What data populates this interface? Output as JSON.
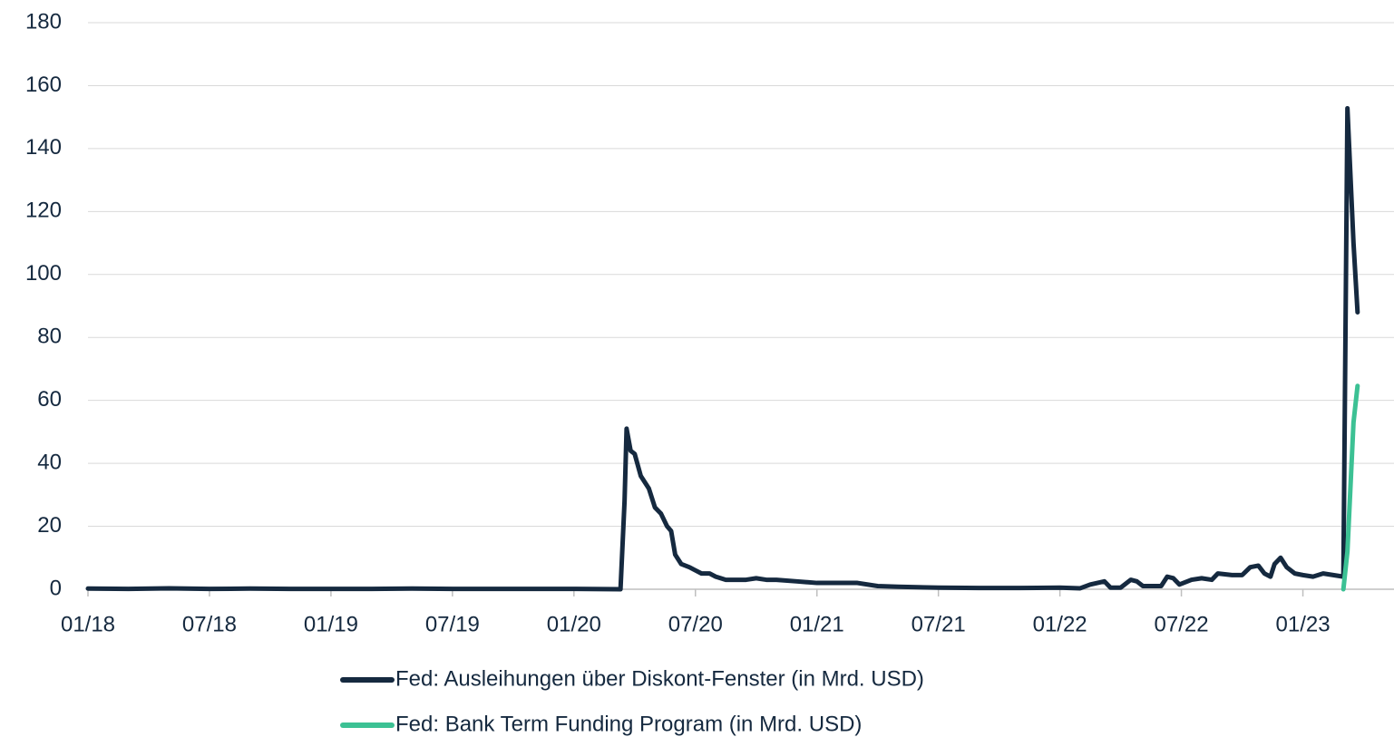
{
  "chart_data": {
    "type": "line",
    "x": [
      0,
      2,
      4,
      6,
      8,
      10,
      12,
      14,
      16,
      18,
      20,
      22,
      24,
      26.3,
      26.5,
      26.6,
      26.8,
      27.0,
      27.3,
      27.7,
      28.0,
      28.3,
      28.6,
      28.8,
      29.0,
      29.3,
      29.7,
      30.0,
      30.3,
      30.7,
      31.0,
      31.5,
      32,
      32.5,
      33,
      33.5,
      34,
      35,
      36,
      37,
      38,
      39,
      40,
      42,
      44,
      46,
      48,
      49,
      49.5,
      50.2,
      50.5,
      51,
      51.5,
      51.8,
      52.1,
      53,
      53.3,
      53.6,
      53.9,
      54.5,
      55,
      55.5,
      55.8,
      56.5,
      57,
      57.4,
      57.8,
      58.1,
      58.4,
      58.6,
      58.9,
      59.2,
      59.6,
      60,
      60.5,
      61,
      61.5,
      62.0,
      62.2,
      62.5,
      62.7
    ],
    "series": [
      {
        "name": "Fed: Ausleihungen über Diskont-Fenster (in Mrd. USD)",
        "color": "#15293f",
        "values": [
          0.2,
          0.1,
          0.3,
          0.1,
          0.2,
          0.1,
          0.1,
          0.1,
          0.2,
          0.1,
          0.1,
          0.1,
          0.1,
          0,
          28,
          51,
          44,
          43,
          36,
          32,
          26,
          24,
          20,
          18.5,
          11,
          8,
          7,
          6,
          5,
          5,
          4,
          3,
          3,
          3,
          3.5,
          3,
          3,
          2.5,
          2,
          2,
          2,
          1,
          0.8,
          0.5,
          0.4,
          0.4,
          0.5,
          0.3,
          1.5,
          2.5,
          0.5,
          0.5,
          3,
          2.5,
          1,
          1,
          4,
          3.5,
          1.5,
          3,
          3.5,
          3,
          5,
          4.5,
          4.5,
          7,
          7.5,
          5,
          4,
          8,
          10,
          7,
          5,
          4.5,
          4,
          5,
          4.5,
          4,
          152.8,
          110,
          88
        ]
      },
      {
        "name": "Fed: Bank Term Funding Program (in Mrd. USD)",
        "color": "#3cc194",
        "values": [
          null,
          null,
          null,
          null,
          null,
          null,
          null,
          null,
          null,
          null,
          null,
          null,
          null,
          null,
          null,
          null,
          null,
          null,
          null,
          null,
          null,
          null,
          null,
          null,
          null,
          null,
          null,
          null,
          null,
          null,
          null,
          null,
          null,
          null,
          null,
          null,
          null,
          null,
          null,
          null,
          null,
          null,
          null,
          null,
          null,
          null,
          null,
          null,
          null,
          null,
          null,
          null,
          null,
          null,
          null,
          null,
          null,
          null,
          null,
          null,
          null,
          null,
          null,
          null,
          null,
          null,
          null,
          null,
          null,
          null,
          null,
          null,
          null,
          null,
          null,
          null,
          null,
          0,
          12,
          53,
          64.6
        ]
      }
    ],
    "xlim": [
      0,
      64.5
    ],
    "xticks": [
      {
        "value": 0,
        "label": "01/18"
      },
      {
        "value": 6,
        "label": "07/18"
      },
      {
        "value": 12,
        "label": "01/19"
      },
      {
        "value": 18,
        "label": "07/19"
      },
      {
        "value": 24,
        "label": "01/20"
      },
      {
        "value": 30,
        "label": "07/20"
      },
      {
        "value": 36,
        "label": "01/21"
      },
      {
        "value": 42,
        "label": "07/21"
      },
      {
        "value": 48,
        "label": "01/22"
      },
      {
        "value": 54,
        "label": "07/22"
      },
      {
        "value": 60,
        "label": "01/23"
      }
    ],
    "ylim": [
      0,
      180
    ],
    "yticks": [
      0,
      20,
      40,
      60,
      80,
      100,
      120,
      140,
      160,
      180
    ],
    "grid": true
  }
}
